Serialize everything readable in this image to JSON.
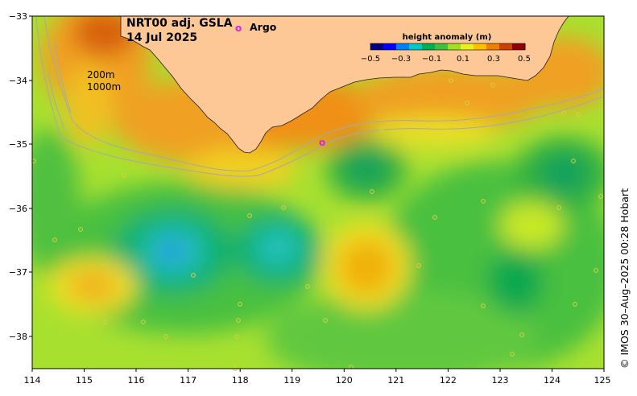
{
  "title": {
    "product": "NRT00 adj. GSLA",
    "date": "14 Jul 2025"
  },
  "argo_label": "Argo",
  "argo_symbol": "o",
  "isobaths": {
    "shallow": "200m",
    "deep": "1000m"
  },
  "colorbar": {
    "title": "height anomaly (m)",
    "ticks": [
      "−0.5",
      "−0.3",
      "−0.1",
      "0.1",
      "0.3",
      "0.5"
    ],
    "colors": [
      "#000080",
      "#0000ff",
      "#0080ff",
      "#00c8c8",
      "#00b050",
      "#40c040",
      "#a0e020",
      "#e8f020",
      "#ffc000",
      "#f08000",
      "#d04000",
      "#900000"
    ]
  },
  "axes": {
    "lon_ticks": [
      "114",
      "115",
      "116",
      "117",
      "118",
      "119",
      "120",
      "121",
      "122",
      "123",
      "124",
      "125"
    ],
    "lat_ticks": [
      "−33",
      "−34",
      "−35",
      "−36",
      "−37",
      "−38"
    ]
  },
  "credit": "© IMOS 30–Aug–2025 00:28 Hobart",
  "colors": {
    "land": "#fdc896",
    "isobath": "#a8a8a8",
    "argo": "#e020e0"
  }
}
